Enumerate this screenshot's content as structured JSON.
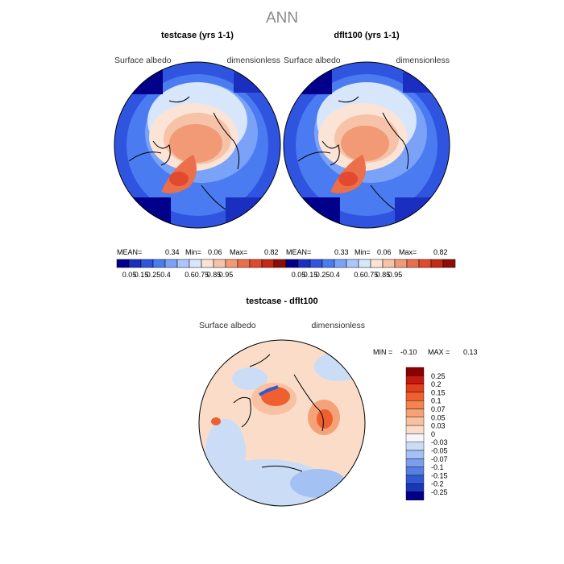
{
  "main_title": "ANN",
  "panels": [
    {
      "title": "testcase (yrs 1-1)",
      "variable": "Surface albedo",
      "units": "dimensionless",
      "stats": {
        "mean_label": "MEAN=",
        "mean": "0.34",
        "min_label": "Min=",
        "min": "0.06",
        "max_label": "Max=",
        "max": "0.82"
      }
    },
    {
      "title": "dflt100 (yrs 1-1)",
      "variable": "Surface albedo",
      "units": "dimensionless",
      "stats": {
        "mean_label": "MEAN=",
        "mean": "0.33",
        "min_label": "Min=",
        "min": "0.06",
        "max_label": "Max=",
        "max": "0.82"
      }
    }
  ],
  "diff_panel": {
    "title": "testcase - dflt100",
    "variable": "Surface albedo",
    "units": "dimensionless",
    "min_label": "MIN =",
    "min": "-0.10",
    "max_label": "MAX =",
    "max": "0.13"
  },
  "chart_data": [
    {
      "type": "heatmap",
      "projection": "north-polar-stereographic",
      "title": "testcase (yrs 1-1)",
      "variable": "Surface albedo",
      "units": "dimensionless",
      "mean": 0.34,
      "min": 0.06,
      "max": 0.82,
      "colorbar": {
        "labels": [
          "0.05",
          "0.15",
          "0.25",
          "0.4",
          "0.6",
          "0.75",
          "0.85",
          "0.95"
        ],
        "colors": [
          "#00008b",
          "#1a2fc0",
          "#2f55e0",
          "#4a7bf0",
          "#7aa2f7",
          "#aac6fa",
          "#d8e6fc",
          "#fbe3d6",
          "#f6c2a8",
          "#f19a75",
          "#ec6f4c",
          "#e14a2e",
          "#c22a15",
          "#8e0d06"
        ]
      }
    },
    {
      "type": "heatmap",
      "projection": "north-polar-stereographic",
      "title": "dflt100 (yrs 1-1)",
      "variable": "Surface albedo",
      "units": "dimensionless",
      "mean": 0.33,
      "min": 0.06,
      "max": 0.82,
      "colorbar": {
        "labels": [
          "0.05",
          "0.15",
          "0.25",
          "0.4",
          "0.6",
          "0.75",
          "0.85",
          "0.95"
        ],
        "colors": [
          "#00008b",
          "#1a2fc0",
          "#2f55e0",
          "#4a7bf0",
          "#7aa2f7",
          "#aac6fa",
          "#d8e6fc",
          "#fbe3d6",
          "#f6c2a8",
          "#f19a75",
          "#ec6f4c",
          "#e14a2e",
          "#c22a15",
          "#8e0d06"
        ]
      }
    },
    {
      "type": "heatmap",
      "projection": "north-polar-stereographic",
      "title": "testcase - dflt100",
      "variable": "Surface albedo",
      "units": "dimensionless",
      "min": -0.1,
      "max": 0.13,
      "colorbar": {
        "labels": [
          "0.25",
          "0.2",
          "0.15",
          "0.1",
          "0.07",
          "0.05",
          "0.03",
          "0",
          "-0.03",
          "-0.05",
          "-0.07",
          "-0.1",
          "-0.15",
          "-0.2",
          "-0.25"
        ],
        "colors": [
          "#8b0000",
          "#c41a0c",
          "#e0401e",
          "#ee6030",
          "#f2844f",
          "#f5a278",
          "#f8c2a2",
          "#fbdcc8",
          "#f4f6fb",
          "#cbdcf7",
          "#a4c1f3",
          "#7c9fec",
          "#5680e2",
          "#3258d2",
          "#1c36b8",
          "#000088"
        ]
      }
    }
  ]
}
